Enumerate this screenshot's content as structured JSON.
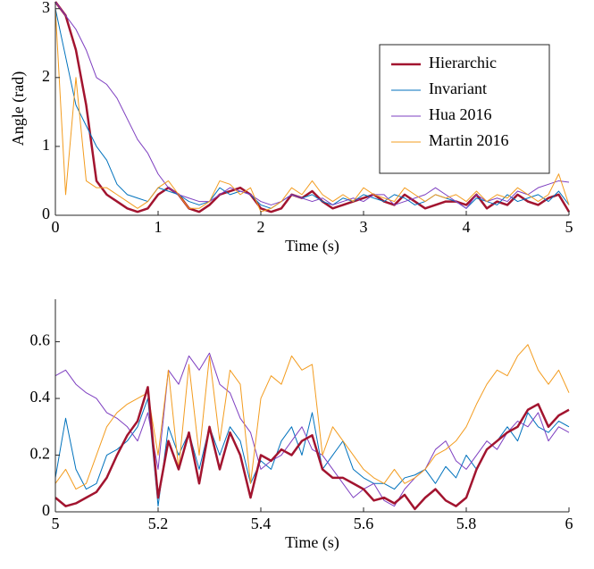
{
  "chart_data": [
    {
      "type": "line",
      "xlabel": "Time (s)",
      "ylabel": "Angle (rad)",
      "xlim": [
        0,
        5
      ],
      "ylim": [
        0,
        3.1
      ],
      "xticks": [
        0,
        1,
        2,
        3,
        4,
        5
      ],
      "yticks": [
        0,
        1,
        2,
        3
      ],
      "legend": "upper right",
      "x": [
        0,
        0.1,
        0.2,
        0.3,
        0.4,
        0.5,
        0.6,
        0.7,
        0.8,
        0.9,
        1,
        1.1,
        1.2,
        1.3,
        1.4,
        1.5,
        1.6,
        1.7,
        1.8,
        1.9,
        2,
        2.1,
        2.2,
        2.3,
        2.4,
        2.5,
        2.6,
        2.7,
        2.8,
        2.9,
        3,
        3.1,
        3.2,
        3.3,
        3.4,
        3.5,
        3.6,
        3.7,
        3.8,
        3.9,
        4,
        4.1,
        4.2,
        4.3,
        4.4,
        4.5,
        4.6,
        4.7,
        4.8,
        4.9,
        5
      ],
      "series": [
        {
          "name": "Hierarchic",
          "color": "#a2142f",
          "width": 2.5,
          "values": [
            3.1,
            2.9,
            2.4,
            1.6,
            0.5,
            0.3,
            0.2,
            0.1,
            0.05,
            0.1,
            0.3,
            0.4,
            0.3,
            0.1,
            0.05,
            0.15,
            0.3,
            0.35,
            0.4,
            0.3,
            0.1,
            0.05,
            0.1,
            0.3,
            0.25,
            0.35,
            0.2,
            0.1,
            0.15,
            0.2,
            0.25,
            0.3,
            0.2,
            0.15,
            0.3,
            0.2,
            0.1,
            0.15,
            0.2,
            0.2,
            0.15,
            0.3,
            0.1,
            0.2,
            0.15,
            0.3,
            0.2,
            0.15,
            0.25,
            0.3,
            0.05
          ]
        },
        {
          "name": "Invariant",
          "color": "#0072bd",
          "width": 1,
          "values": [
            3.0,
            2.3,
            1.6,
            1.3,
            1.0,
            0.8,
            0.45,
            0.3,
            0.25,
            0.2,
            0.4,
            0.35,
            0.3,
            0.2,
            0.15,
            0.2,
            0.4,
            0.3,
            0.35,
            0.3,
            0.15,
            0.1,
            0.2,
            0.3,
            0.25,
            0.3,
            0.2,
            0.15,
            0.25,
            0.2,
            0.3,
            0.25,
            0.2,
            0.3,
            0.25,
            0.15,
            0.2,
            0.3,
            0.25,
            0.2,
            0.1,
            0.25,
            0.2,
            0.15,
            0.3,
            0.2,
            0.25,
            0.3,
            0.2,
            0.35,
            0.15
          ]
        },
        {
          "name": "Hua 2016",
          "color": "#7e3fc0",
          "width": 1,
          "values": [
            3.1,
            2.9,
            2.7,
            2.4,
            2.0,
            1.9,
            1.7,
            1.4,
            1.1,
            0.9,
            0.6,
            0.4,
            0.3,
            0.25,
            0.2,
            0.2,
            0.3,
            0.4,
            0.35,
            0.3,
            0.2,
            0.15,
            0.2,
            0.3,
            0.25,
            0.2,
            0.25,
            0.15,
            0.2,
            0.25,
            0.2,
            0.3,
            0.3,
            0.15,
            0.2,
            0.25,
            0.3,
            0.4,
            0.3,
            0.2,
            0.1,
            0.3,
            0.2,
            0.25,
            0.2,
            0.35,
            0.3,
            0.4,
            0.45,
            0.5,
            0.48
          ]
        },
        {
          "name": "Martin 2016",
          "color": "#f39c1f",
          "width": 1,
          "values": [
            3.0,
            0.3,
            2.0,
            0.5,
            0.4,
            0.4,
            0.3,
            0.2,
            0.1,
            0.2,
            0.4,
            0.5,
            0.3,
            0.1,
            0.1,
            0.2,
            0.5,
            0.45,
            0.3,
            0.4,
            0.05,
            0.1,
            0.2,
            0.4,
            0.3,
            0.5,
            0.3,
            0.2,
            0.3,
            0.2,
            0.4,
            0.3,
            0.25,
            0.2,
            0.4,
            0.3,
            0.2,
            0.3,
            0.25,
            0.3,
            0.2,
            0.35,
            0.2,
            0.3,
            0.25,
            0.4,
            0.3,
            0.2,
            0.3,
            0.6,
            0.15
          ]
        }
      ]
    },
    {
      "type": "line",
      "xlabel": "Time (s)",
      "xlim": [
        5,
        6
      ],
      "ylim": [
        0,
        0.75
      ],
      "xticks": [
        5,
        5.2,
        5.4,
        5.6,
        5.8,
        6
      ],
      "yticks": [
        0,
        0.2,
        0.4,
        0.6
      ],
      "x": [
        5,
        5.02,
        5.04,
        5.06,
        5.08,
        5.1,
        5.12,
        5.14,
        5.16,
        5.18,
        5.2,
        5.22,
        5.24,
        5.26,
        5.28,
        5.3,
        5.32,
        5.34,
        5.36,
        5.38,
        5.4,
        5.42,
        5.44,
        5.46,
        5.48,
        5.5,
        5.52,
        5.54,
        5.56,
        5.58,
        5.6,
        5.62,
        5.64,
        5.66,
        5.68,
        5.7,
        5.72,
        5.74,
        5.76,
        5.78,
        5.8,
        5.82,
        5.84,
        5.86,
        5.88,
        5.9,
        5.92,
        5.94,
        5.96,
        5.98,
        6
      ],
      "series": [
        {
          "color": "#0072bd",
          "width": 1,
          "values": [
            0.12,
            0.33,
            0.15,
            0.08,
            0.1,
            0.2,
            0.22,
            0.25,
            0.3,
            0.4,
            0.02,
            0.3,
            0.2,
            0.28,
            0.15,
            0.3,
            0.2,
            0.3,
            0.25,
            0.1,
            0.18,
            0.15,
            0.25,
            0.3,
            0.2,
            0.35,
            0.15,
            0.2,
            0.25,
            0.15,
            0.12,
            0.1,
            0.1,
            0.08,
            0.12,
            0.13,
            0.15,
            0.1,
            0.16,
            0.12,
            0.2,
            0.15,
            0.22,
            0.25,
            0.3,
            0.25,
            0.35,
            0.3,
            0.28,
            0.32,
            0.3
          ]
        },
        {
          "color": "#7e3fc0",
          "width": 1,
          "values": [
            0.48,
            0.5,
            0.45,
            0.42,
            0.4,
            0.35,
            0.33,
            0.3,
            0.25,
            0.35,
            0.15,
            0.5,
            0.45,
            0.55,
            0.5,
            0.56,
            0.45,
            0.42,
            0.33,
            0.28,
            0.15,
            0.18,
            0.2,
            0.25,
            0.3,
            0.22,
            0.2,
            0.15,
            0.1,
            0.05,
            0.08,
            0.1,
            0.04,
            0.02,
            0.08,
            0.12,
            0.15,
            0.22,
            0.25,
            0.18,
            0.15,
            0.2,
            0.25,
            0.22,
            0.28,
            0.32,
            0.3,
            0.35,
            0.25,
            0.3,
            0.28
          ]
        },
        {
          "color": "#f39c1f",
          "width": 1,
          "values": [
            0.1,
            0.15,
            0.08,
            0.1,
            0.2,
            0.3,
            0.35,
            0.38,
            0.4,
            0.42,
            0.2,
            0.5,
            0.15,
            0.52,
            0.2,
            0.55,
            0.25,
            0.5,
            0.45,
            0.1,
            0.4,
            0.48,
            0.45,
            0.55,
            0.5,
            0.52,
            0.2,
            0.3,
            0.25,
            0.2,
            0.15,
            0.12,
            0.1,
            0.15,
            0.1,
            0.12,
            0.15,
            0.2,
            0.22,
            0.25,
            0.3,
            0.38,
            0.45,
            0.5,
            0.48,
            0.55,
            0.59,
            0.5,
            0.45,
            0.5,
            0.42
          ]
        },
        {
          "color": "#a2142f",
          "width": 2.5,
          "values": [
            0.05,
            0.02,
            0.03,
            0.05,
            0.07,
            0.12,
            0.2,
            0.27,
            0.32,
            0.44,
            0.05,
            0.25,
            0.15,
            0.28,
            0.1,
            0.3,
            0.15,
            0.28,
            0.2,
            0.05,
            0.2,
            0.18,
            0.22,
            0.2,
            0.25,
            0.27,
            0.15,
            0.12,
            0.12,
            0.1,
            0.08,
            0.04,
            0.05,
            0.03,
            0.06,
            0.01,
            0.05,
            0.08,
            0.04,
            0.02,
            0.05,
            0.15,
            0.22,
            0.25,
            0.28,
            0.3,
            0.36,
            0.38,
            0.3,
            0.34,
            0.36
          ]
        }
      ]
    }
  ]
}
